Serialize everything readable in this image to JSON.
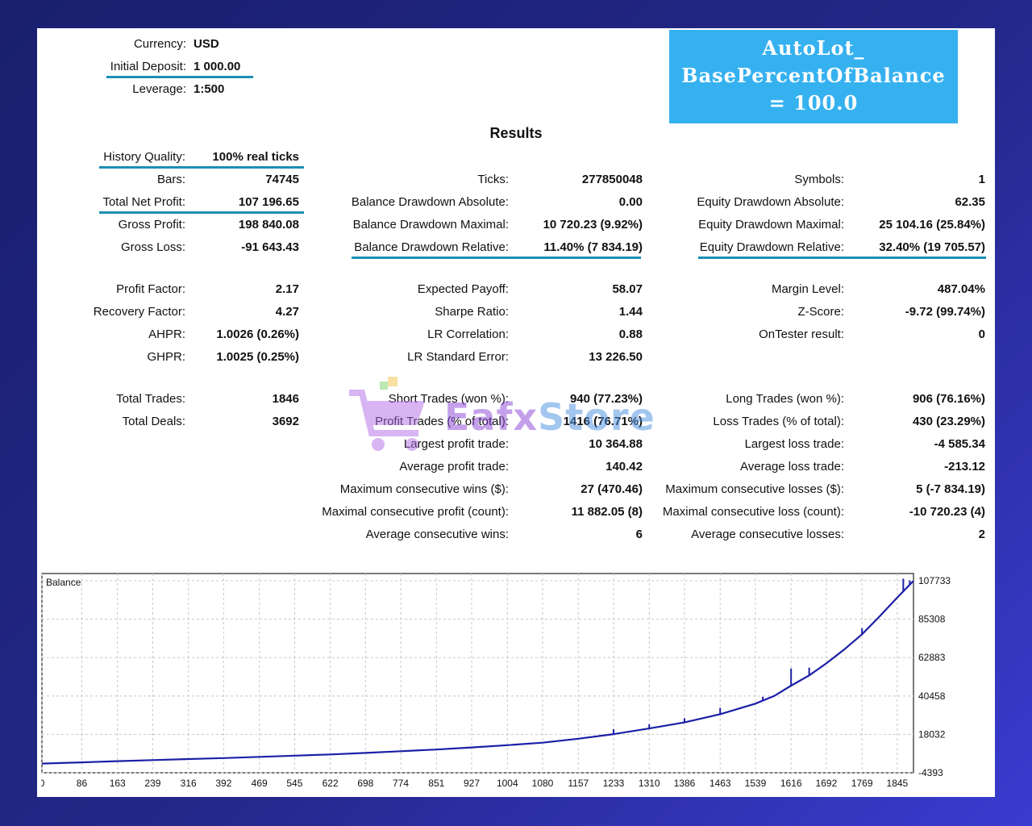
{
  "badge": {
    "lines": [
      "AutoLot_",
      "BasePercentOfBalance",
      "= 100.0"
    ]
  },
  "header": {
    "currency_label": "Currency:",
    "currency_value": "USD",
    "deposit_label": "Initial Deposit:",
    "deposit_value": "1 000.00",
    "leverage_label": "Leverage:",
    "leverage_value": "1:500"
  },
  "results_title": "Results",
  "col1": {
    "history_quality_label": "History Quality:",
    "history_quality_value": "100% real ticks",
    "bars_label": "Bars:",
    "bars_value": "74745",
    "net_profit_label": "Total Net Profit:",
    "net_profit_value": "107 196.65",
    "gross_profit_label": "Gross Profit:",
    "gross_profit_value": "198 840.08",
    "gross_loss_label": "Gross Loss:",
    "gross_loss_value": "-91 643.43",
    "profit_factor_label": "Profit Factor:",
    "profit_factor_value": "2.17",
    "recovery_factor_label": "Recovery Factor:",
    "recovery_factor_value": "4.27",
    "ahpr_label": "AHPR:",
    "ahpr_value": "1.0026 (0.26%)",
    "ghpr_label": "GHPR:",
    "ghpr_value": "1.0025 (0.25%)",
    "total_trades_label": "Total Trades:",
    "total_trades_value": "1846",
    "total_deals_label": "Total Deals:",
    "total_deals_value": "3692"
  },
  "col2": {
    "ticks_label": "Ticks:",
    "ticks_value": "277850048",
    "bal_dd_abs_label": "Balance Drawdown Absolute:",
    "bal_dd_abs_value": "0.00",
    "bal_dd_max_label": "Balance Drawdown Maximal:",
    "bal_dd_max_value": "10 720.23 (9.92%)",
    "bal_dd_rel_label": "Balance Drawdown Relative:",
    "bal_dd_rel_value": "11.40% (7 834.19)",
    "expected_payoff_label": "Expected Payoff:",
    "expected_payoff_value": "58.07",
    "sharpe_label": "Sharpe Ratio:",
    "sharpe_value": "1.44",
    "lr_corr_label": "LR Correlation:",
    "lr_corr_value": "0.88",
    "lr_err_label": "LR Standard Error:",
    "lr_err_value": "13 226.50",
    "short_trades_label": "Short Trades (won %):",
    "short_trades_value": "940 (77.23%)",
    "profit_trades_label": "Profit Trades (% of total):",
    "profit_trades_value": "1416 (76.71%)",
    "largest_profit_label": "Largest profit trade:",
    "largest_profit_value": "10 364.88",
    "avg_profit_label": "Average profit trade:",
    "avg_profit_value": "140.42",
    "max_cons_wins_label": "Maximum consecutive wins ($):",
    "max_cons_wins_value": "27 (470.46)",
    "maximal_cons_profit_label": "Maximal consecutive profit (count):",
    "maximal_cons_profit_value": "11 882.05 (8)",
    "avg_cons_wins_label": "Average consecutive wins:",
    "avg_cons_wins_value": "6"
  },
  "col3": {
    "symbols_label": "Symbols:",
    "symbols_value": "1",
    "eq_dd_abs_label": "Equity Drawdown Absolute:",
    "eq_dd_abs_value": "62.35",
    "eq_dd_max_label": "Equity Drawdown Maximal:",
    "eq_dd_max_value": "25 104.16 (25.84%)",
    "eq_dd_rel_label": "Equity Drawdown Relative:",
    "eq_dd_rel_value": "32.40% (19 705.57)",
    "margin_level_label": "Margin Level:",
    "margin_level_value": "487.04%",
    "zscore_label": "Z-Score:",
    "zscore_value": "-9.72 (99.74%)",
    "ontester_label": "OnTester result:",
    "ontester_value": "0",
    "long_trades_label": "Long Trades (won %):",
    "long_trades_value": "906 (76.16%)",
    "loss_trades_label": "Loss Trades (% of total):",
    "loss_trades_value": "430 (23.29%)",
    "largest_loss_label": "Largest loss trade:",
    "largest_loss_value": "-4 585.34",
    "avg_loss_label": "Average loss trade:",
    "avg_loss_value": "-213.12",
    "max_cons_losses_label": "Maximum consecutive losses ($):",
    "max_cons_losses_value": "5 (-7 834.19)",
    "maximal_cons_loss_label": "Maximal consecutive loss (count):",
    "maximal_cons_loss_value": "-10 720.23 (4)",
    "avg_cons_losses_label": "Average consecutive losses:",
    "avg_cons_losses_value": "2"
  },
  "watermark": {
    "part1": "Eafx",
    "part2": "Store"
  },
  "colors": {
    "accent_underline": "#1a8fb5",
    "badge_bg": "#36b1f0",
    "balance_line": "#1b1fa6"
  },
  "chart_data": {
    "type": "line",
    "title": "Balance",
    "series": [
      {
        "values": [
          [
            0,
            1000
          ],
          [
            86,
            1700
          ],
          [
            163,
            2400
          ],
          [
            239,
            3000
          ],
          [
            316,
            3600
          ],
          [
            392,
            4200
          ],
          [
            469,
            4900
          ],
          [
            545,
            5600
          ],
          [
            622,
            6300
          ],
          [
            698,
            7200
          ],
          [
            774,
            8200
          ],
          [
            851,
            9200
          ],
          [
            927,
            10400
          ],
          [
            1004,
            11700
          ],
          [
            1080,
            13200
          ],
          [
            1157,
            15500
          ],
          [
            1233,
            18200
          ],
          [
            1310,
            21500
          ],
          [
            1386,
            25000
          ],
          [
            1463,
            29800
          ],
          [
            1539,
            36000
          ],
          [
            1580,
            40500
          ],
          [
            1616,
            46500
          ],
          [
            1655,
            52500
          ],
          [
            1692,
            59500
          ],
          [
            1730,
            67500
          ],
          [
            1769,
            76500
          ],
          [
            1807,
            87000
          ],
          [
            1845,
            98000
          ],
          [
            1880,
            107733
          ]
        ]
      }
    ],
    "spikes": [
      {
        "x": 1233,
        "y": 21000
      },
      {
        "x": 1310,
        "y": 24000
      },
      {
        "x": 1386,
        "y": 27500
      },
      {
        "x": 1463,
        "y": 33500
      },
      {
        "x": 1555,
        "y": 40000
      },
      {
        "x": 1616,
        "y": 56500
      },
      {
        "x": 1655,
        "y": 57000
      },
      {
        "x": 1769,
        "y": 80000
      },
      {
        "x": 1858,
        "y": 109000
      },
      {
        "x": 1872,
        "y": 108000
      }
    ],
    "x_ticks": [
      0,
      86,
      163,
      239,
      316,
      392,
      469,
      545,
      622,
      698,
      774,
      851,
      927,
      1004,
      1080,
      1157,
      1233,
      1310,
      1386,
      1463,
      1539,
      1616,
      1692,
      1769,
      1845
    ],
    "y_ticks": [
      -4393,
      18032,
      40458,
      62883,
      85308,
      107733
    ],
    "xlim": [
      0,
      1880
    ],
    "ylim": [
      -4393,
      112000
    ],
    "grid": true
  }
}
